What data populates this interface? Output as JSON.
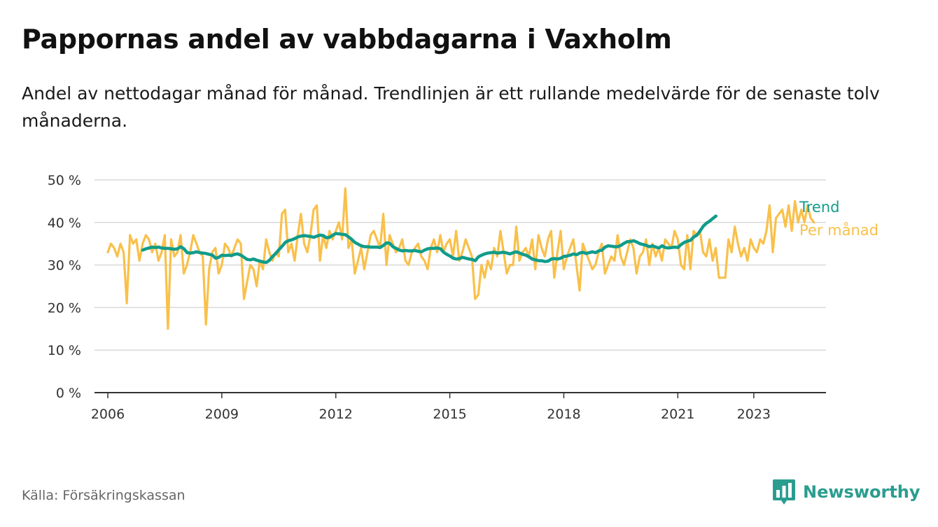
{
  "title": "Pappornas andel av vabbdagarna i Vaxholm",
  "subtitle": "Andel av nettodagar månad för månad. Trendlinjen är ett rullande medelvärde för de senaste tolv månaderna.",
  "source": "Källa: Försäkringskassan",
  "brand": {
    "name": "Newsworthy",
    "icon": "bar-chart-speech-bubble-icon"
  },
  "colors": {
    "monthly": "#f9c04a",
    "trend": "#119c8a",
    "grid": "#d9d9d9",
    "axis": "#333333",
    "brand": "#2a9d8f"
  },
  "chart_data": {
    "type": "line",
    "x_unit": "year",
    "xlim": [
      2005.65,
      2024.9
    ],
    "ylim": [
      0,
      50
    ],
    "yticks": [
      0,
      10,
      20,
      30,
      40,
      50
    ],
    "ytick_labels": [
      "0 %",
      "10 %",
      "20 %",
      "30 %",
      "40 %",
      "50 %"
    ],
    "xticks": [
      2006,
      2009,
      2012,
      2015,
      2018,
      2021,
      2023
    ],
    "xtick_labels": [
      "2006",
      "2009",
      "2012",
      "2015",
      "2018",
      "2021",
      "2023"
    ],
    "grid": true,
    "series": [
      {
        "name": "Per månad",
        "key": "monthly",
        "start": 2006.0,
        "step": 0.08333,
        "values": [
          33,
          35,
          34,
          32,
          35,
          33,
          21,
          37,
          35,
          36,
          31,
          35,
          37,
          36,
          33,
          35,
          31,
          33,
          37,
          15,
          36,
          32,
          33,
          37,
          28,
          30,
          33,
          37,
          35,
          33,
          32,
          16,
          29,
          33,
          34,
          28,
          30,
          35,
          34,
          32,
          34,
          36,
          35,
          22,
          26,
          30,
          29,
          25,
          31,
          29,
          36,
          33,
          31,
          33,
          32,
          42,
          43,
          33,
          35,
          31,
          37,
          42,
          35,
          33,
          37,
          43,
          44,
          31,
          37,
          34,
          38,
          36,
          38,
          40,
          36,
          48,
          34,
          36,
          28,
          31,
          34,
          29,
          33,
          37,
          38,
          36,
          34,
          42,
          30,
          37,
          35,
          33,
          34,
          36,
          31,
          30,
          33,
          34,
          35,
          32,
          31,
          29,
          34,
          36,
          33,
          37,
          33,
          35,
          36,
          32,
          38,
          31,
          33,
          36,
          34,
          32,
          22,
          23,
          30,
          27,
          31,
          29,
          34,
          32,
          38,
          33,
          28,
          30,
          30,
          39,
          31,
          33,
          34,
          32,
          36,
          29,
          37,
          34,
          32,
          36,
          38,
          27,
          33,
          38,
          29,
          32,
          34,
          36,
          30,
          24,
          35,
          33,
          31,
          29,
          30,
          33,
          35,
          28,
          30,
          32,
          31,
          37,
          32,
          30,
          33,
          36,
          34,
          28,
          32,
          33,
          36,
          30,
          35,
          32,
          34,
          31,
          36,
          35,
          34,
          38,
          36,
          30,
          29,
          37,
          29,
          38,
          37,
          38,
          33,
          32,
          36,
          31,
          34,
          27,
          27,
          27,
          36,
          33,
          39,
          35,
          32,
          34,
          31,
          36,
          34,
          33,
          36,
          35,
          38,
          44,
          33,
          41,
          42,
          43,
          39,
          44,
          38,
          45,
          40,
          43,
          40,
          44,
          41,
          40
        ]
      },
      {
        "name": "Trend",
        "key": "trend",
        "start": 2006.92,
        "step": 0.08333,
        "values": [
          33.5,
          33.8,
          34.0,
          34.2,
          34.1,
          34.2,
          34.0,
          33.9,
          33.9,
          33.8,
          33.7,
          33.8,
          34.3,
          33.8,
          32.9,
          32.8,
          32.9,
          33.1,
          32.9,
          32.8,
          32.7,
          32.5,
          32.3,
          31.6,
          31.8,
          32.3,
          32.2,
          32.3,
          32.2,
          32.5,
          32.6,
          32.3,
          31.8,
          31.3,
          31.2,
          31.4,
          31.1,
          30.9,
          30.7,
          30.6,
          31.1,
          32.0,
          32.7,
          33.6,
          34.4,
          35.3,
          35.7,
          35.9,
          36.2,
          36.6,
          36.8,
          36.9,
          36.8,
          36.7,
          36.5,
          36.8,
          37.0,
          36.9,
          36.4,
          36.5,
          37.0,
          37.4,
          37.3,
          37.2,
          37.1,
          36.6,
          36.0,
          35.3,
          34.9,
          34.5,
          34.3,
          34.3,
          34.2,
          34.2,
          34.2,
          34.1,
          34.6,
          35.2,
          35.1,
          34.3,
          33.9,
          33.5,
          33.3,
          33.4,
          33.3,
          33.3,
          33.4,
          33.2,
          33.1,
          33.5,
          33.8,
          33.9,
          33.9,
          34.0,
          33.8,
          33.0,
          32.5,
          32.1,
          31.6,
          31.4,
          31.5,
          31.8,
          31.6,
          31.4,
          31.3,
          31.0,
          31.9,
          32.3,
          32.6,
          32.8,
          32.9,
          33.0,
          32.8,
          32.9,
          33.0,
          32.8,
          32.6,
          32.9,
          33.1,
          32.8,
          32.5,
          32.3,
          31.9,
          31.4,
          31.2,
          31.0,
          31.0,
          30.8,
          30.9,
          31.4,
          31.5,
          31.4,
          31.6,
          32.0,
          32.1,
          32.3,
          32.6,
          32.4,
          32.8,
          33.0,
          32.7,
          32.9,
          33.1,
          32.9,
          33.3,
          33.5,
          34.2,
          34.5,
          34.4,
          34.3,
          34.3,
          34.6,
          35.1,
          35.5,
          35.5,
          35.7,
          35.4,
          35.0,
          34.8,
          34.6,
          34.3,
          34.5,
          34.2,
          34.0,
          34.5,
          34.1,
          34.0,
          34.1,
          34.2,
          34.1,
          34.8,
          35.3,
          35.6,
          35.8,
          36.6,
          37.0,
          38.0,
          39.1,
          39.8,
          40.3,
          40.9,
          41.5
        ]
      }
    ]
  }
}
